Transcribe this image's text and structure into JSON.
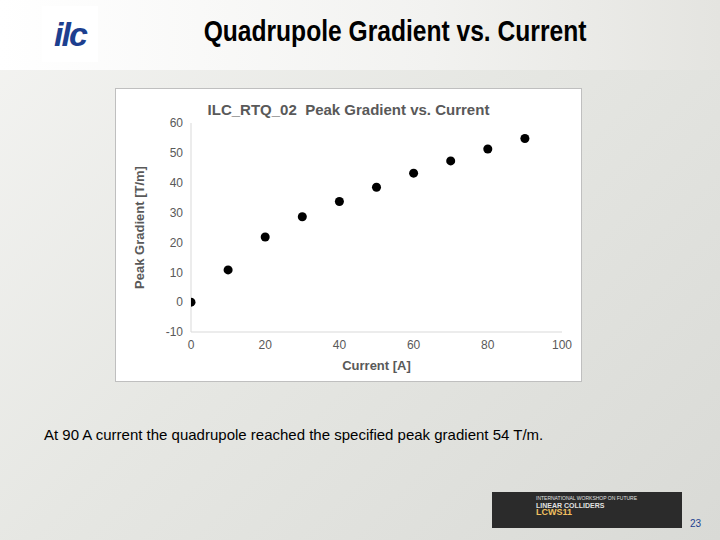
{
  "chart_data": {
    "type": "scatter",
    "title": "ILC_RTQ_02  Peak Gradient vs. Current",
    "xlabel": "Current [A]",
    "ylabel": "Peak Gradient [T/m]",
    "x": [
      0,
      10,
      20,
      30,
      40,
      50,
      60,
      70,
      80,
      90
    ],
    "values": [
      0,
      10.8,
      21.8,
      28.6,
      33.7,
      38.5,
      43.2,
      47.3,
      51.3,
      54.8
    ],
    "xlim": [
      0,
      100
    ],
    "ylim": [
      -10,
      60
    ],
    "xticks": [
      0,
      20,
      40,
      60,
      80,
      100
    ],
    "yticks": [
      -10,
      0,
      10,
      20,
      30,
      40,
      50,
      60
    ],
    "grid": false,
    "color": "#000000",
    "marker": "circle"
  },
  "slide": {
    "title": "Quadrupole Gradient vs. Current",
    "caption": "At 90 A current the quadrupole reached the specified peak gradient 54 T/m.",
    "page": 23,
    "logo": "ilc",
    "footer_logo": [
      "INTERNATIONAL WORKSHOP ON FUTURE",
      "LINEAR COLLIDERS",
      "LCWS11"
    ]
  }
}
